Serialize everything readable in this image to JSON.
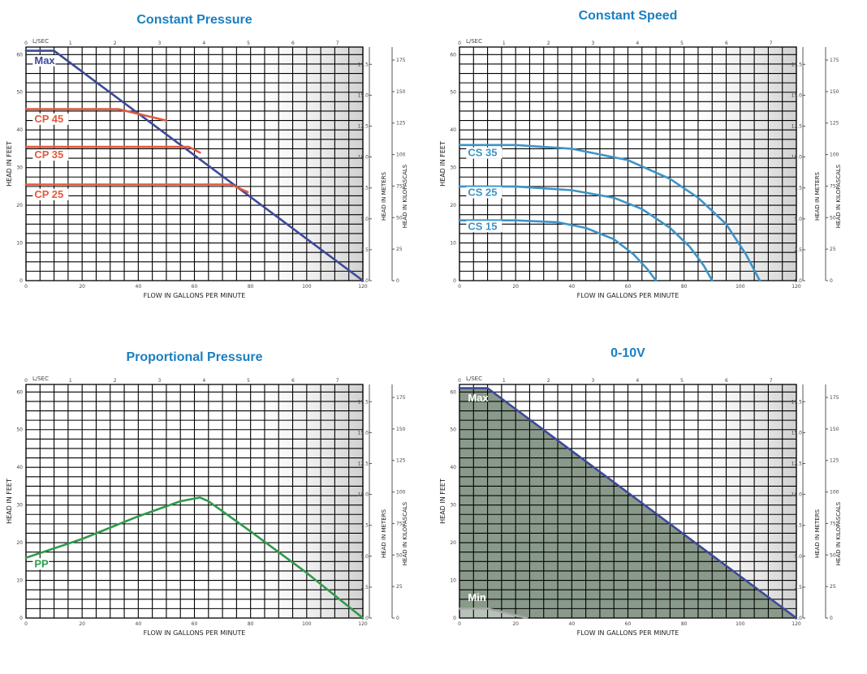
{
  "colors": {
    "title": "#1a7fc1",
    "max_line": "#3c4a9a",
    "cp_line": "#e05a3c",
    "cs_line": "#3d93c8",
    "pp_line": "#2f9a4a",
    "fill_010v": "#8a9a8a",
    "min_line": "#a8a8a8"
  },
  "chart_data": [
    {
      "type": "line",
      "title": "Constant Pressure",
      "xlabel": "FLOW IN GALLONS PER MINUTE",
      "ylabel": "HEAD IN FEET",
      "ylabel_right1": "HEAD IN METERS",
      "ylabel_right2": "HEAD IN KILOPASCALS",
      "top_axis_label": "L/SEC",
      "xlim": [
        0,
        120
      ],
      "ylim": [
        0,
        62
      ],
      "x_ticks": [
        "0",
        "20",
        "40",
        "60",
        "80",
        "100",
        "120"
      ],
      "y_ticks": [
        "0",
        "10",
        "20",
        "30",
        "40",
        "50",
        "60"
      ],
      "top_ticks": [
        "0",
        "1",
        "2",
        "3",
        "4",
        "5",
        "6",
        "7"
      ],
      "meter_ticks": [
        "0.0",
        "2.5",
        "5.0",
        "7.5",
        "10.0",
        "12.5",
        "15.0",
        "17.5"
      ],
      "kpa_ticks": [
        "0",
        "25",
        "50",
        "75",
        "100",
        "125",
        "150",
        "175"
      ],
      "grid": true,
      "series": [
        {
          "name": "Max",
          "color": "#3c4a9a",
          "x": [
            0,
            10,
            120
          ],
          "y": [
            61,
            61,
            0
          ]
        },
        {
          "name": "CP 45",
          "color": "#e05a3c",
          "x": [
            0,
            33,
            50
          ],
          "y": [
            45.5,
            45.5,
            42.5
          ]
        },
        {
          "name": "CP 35",
          "color": "#e05a3c",
          "x": [
            0,
            58,
            62
          ],
          "y": [
            35.5,
            35.5,
            34
          ]
        },
        {
          "name": "CP 25",
          "color": "#e05a3c",
          "x": [
            0,
            73,
            79
          ],
          "y": [
            25.5,
            25.5,
            23.5
          ]
        }
      ],
      "labels": [
        {
          "text": "Max",
          "x": 3,
          "y": 57.5,
          "color": "#3c4a9a"
        },
        {
          "text": "CP 45",
          "x": 3,
          "y": 42,
          "color": "#e05a3c"
        },
        {
          "text": "CP 35",
          "x": 3,
          "y": 32.5,
          "color": "#e05a3c"
        },
        {
          "text": "CP 25",
          "x": 3,
          "y": 22,
          "color": "#e05a3c"
        }
      ]
    },
    {
      "type": "line",
      "title": "Constant Speed",
      "xlabel": "FLOW IN GALLONS PER MINUTE",
      "ylabel": "HEAD IN FEET",
      "ylabel_right1": "HEAD IN METERS",
      "ylabel_right2": "HEAD IN KILOPASCALS",
      "top_axis_label": "L/SEC",
      "xlim": [
        0,
        120
      ],
      "ylim": [
        0,
        62
      ],
      "x_ticks": [
        "0",
        "20",
        "40",
        "60",
        "80",
        "100",
        "120"
      ],
      "y_ticks": [
        "0",
        "10",
        "20",
        "30",
        "40",
        "50",
        "60"
      ],
      "top_ticks": [
        "0",
        "1",
        "2",
        "3",
        "4",
        "5",
        "6",
        "7"
      ],
      "meter_ticks": [
        "0.0",
        "2.5",
        "5.0",
        "7.5",
        "10.0",
        "12.5",
        "15.0",
        "17.5"
      ],
      "kpa_ticks": [
        "0",
        "25",
        "50",
        "75",
        "100",
        "125",
        "150",
        "175"
      ],
      "grid": true,
      "series": [
        {
          "name": "CS 35",
          "color": "#3d93c8",
          "x": [
            0,
            20,
            40,
            60,
            75,
            85,
            95,
            102,
            107
          ],
          "y": [
            36,
            36,
            35,
            32,
            27,
            22,
            15,
            7,
            0
          ]
        },
        {
          "name": "CS 25",
          "color": "#3d93c8",
          "x": [
            0,
            20,
            40,
            55,
            65,
            75,
            82,
            87,
            90
          ],
          "y": [
            25,
            25,
            24,
            22,
            19,
            14,
            9,
            4,
            0
          ]
        },
        {
          "name": "CS 15",
          "color": "#3d93c8",
          "x": [
            0,
            20,
            35,
            45,
            55,
            62,
            67,
            70
          ],
          "y": [
            16,
            16,
            15.5,
            14,
            11,
            7,
            3,
            0
          ]
        }
      ],
      "labels": [
        {
          "text": "CS 35",
          "x": 3,
          "y": 33,
          "color": "#3d93c8"
        },
        {
          "text": "CS 25",
          "x": 3,
          "y": 22.5,
          "color": "#3d93c8"
        },
        {
          "text": "CS 15",
          "x": 3,
          "y": 13.5,
          "color": "#3d93c8"
        }
      ]
    },
    {
      "type": "line",
      "title": "Proportional Pressure",
      "xlabel": "FLOW IN GALLONS PER MINUTE",
      "ylabel": "HEAD IN FEET",
      "ylabel_right1": "HEAD IN METERS",
      "ylabel_right2": "HEAD IN KILOPASCALS",
      "top_axis_label": "L/SEC",
      "xlim": [
        0,
        120
      ],
      "ylim": [
        0,
        62
      ],
      "x_ticks": [
        "0",
        "20",
        "40",
        "60",
        "80",
        "100",
        "120"
      ],
      "y_ticks": [
        "0",
        "10",
        "20",
        "30",
        "40",
        "50",
        "60"
      ],
      "top_ticks": [
        "0",
        "1",
        "2",
        "3",
        "4",
        "5",
        "6",
        "7"
      ],
      "meter_ticks": [
        "0.0",
        "2.5",
        "5.0",
        "7.5",
        "10.0",
        "12.5",
        "15.0",
        "17.5"
      ],
      "kpa_ticks": [
        "0",
        "25",
        "50",
        "75",
        "100",
        "125",
        "150",
        "175"
      ],
      "grid": true,
      "series": [
        {
          "name": "PP",
          "color": "#2f9a4a",
          "x": [
            0,
            20,
            40,
            55,
            62,
            65,
            80,
            100,
            120
          ],
          "y": [
            16,
            21,
            27,
            31,
            32,
            31,
            23,
            12,
            0
          ]
        }
      ],
      "labels": [
        {
          "text": "PP",
          "x": 3,
          "y": 13.5,
          "color": "#2f9a4a"
        }
      ]
    },
    {
      "type": "area",
      "title": "0-10V",
      "xlabel": "FLOW IN GALLONS PER MINUTE",
      "ylabel": "HEAD IN FEET",
      "ylabel_right1": "HEAD IN METERS",
      "ylabel_right2": "HEAD IN KILOPASCALS",
      "top_axis_label": "L/SEC",
      "xlim": [
        0,
        120
      ],
      "ylim": [
        0,
        62
      ],
      "x_ticks": [
        "0",
        "20",
        "40",
        "60",
        "80",
        "100",
        "120"
      ],
      "y_ticks": [
        "0",
        "10",
        "20",
        "30",
        "40",
        "50",
        "60"
      ],
      "top_ticks": [
        "0",
        "1",
        "2",
        "3",
        "4",
        "5",
        "6",
        "7"
      ],
      "meter_ticks": [
        "0.0",
        "2.5",
        "5.0",
        "7.5",
        "10.0",
        "12.5",
        "15.0",
        "17.5"
      ],
      "kpa_ticks": [
        "0",
        "25",
        "50",
        "75",
        "100",
        "125",
        "150",
        "175"
      ],
      "grid": true,
      "series": [
        {
          "name": "Max",
          "color": "#3c4a9a",
          "x": [
            0,
            10,
            120
          ],
          "y": [
            61,
            61,
            0
          ]
        },
        {
          "name": "Min",
          "color": "#a8a8a8",
          "x": [
            0,
            10,
            24
          ],
          "y": [
            2.5,
            2.5,
            0
          ]
        }
      ],
      "labels": [
        {
          "text": "Max",
          "x": 3,
          "y": 57.5,
          "color": "#ffffff"
        },
        {
          "text": "Min",
          "x": 3,
          "y": 4.5,
          "color": "#ffffff"
        }
      ]
    }
  ]
}
